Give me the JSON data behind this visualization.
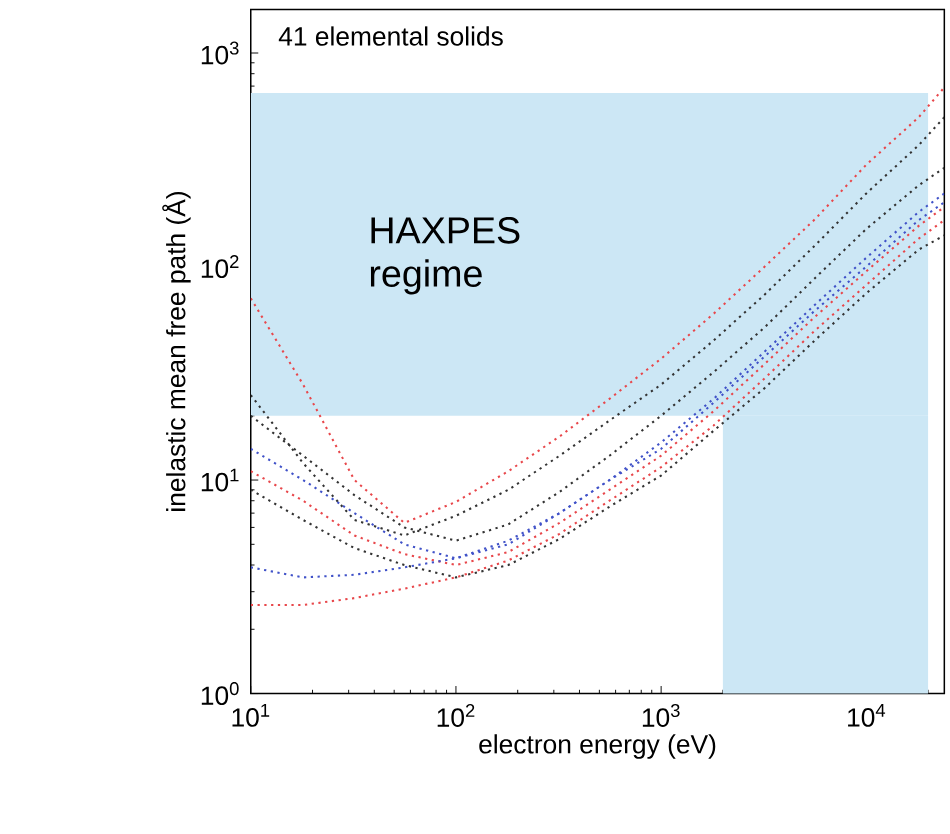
{
  "chart_data": {
    "type": "line",
    "xlabel": "electron energy (eV)",
    "ylabel": "inelastic mean free path  (Å)",
    "log": "xy",
    "xlim": [
      10,
      24000
    ],
    "ylim": [
      1,
      1600
    ],
    "xticks": [
      {
        "value": 10,
        "label": "10$^{1}$"
      },
      {
        "value": 100,
        "label": "10$^{2}$"
      },
      {
        "value": 1000,
        "label": "10$^{3}$"
      },
      {
        "value": 10000,
        "label": "10$^{4}$"
      }
    ],
    "yticks": [
      {
        "value": 1,
        "label": "10$^{0}$"
      },
      {
        "value": 10,
        "label": "10$^{1}$"
      },
      {
        "value": 100,
        "label": "10$^{2}$"
      },
      {
        "value": 1000,
        "label": "10$^{3}$"
      }
    ],
    "line_style": "dotted",
    "x": [
      10,
      18,
      32,
      56,
      100,
      180,
      320,
      560,
      1000,
      1800,
      3200,
      5600,
      10000,
      18000,
      24000
    ],
    "annotations": [
      "41 elemental solids",
      "HAXPES regime"
    ],
    "bands": [
      {
        "axis": "y",
        "from": 20,
        "to": 650,
        "color": "#cce7f5"
      },
      {
        "axis": "x",
        "from": 2000,
        "to": 20000,
        "color": "#cce7f5"
      }
    ],
    "series": [
      {
        "color": "#e8474b",
        "values": [
          71,
          28,
          10,
          6.3,
          7.9,
          11,
          16,
          24,
          37,
          60,
          100,
          166,
          300,
          500,
          690
        ]
      },
      {
        "color": "#333333",
        "values": [
          25,
          12,
          6.5,
          5.5,
          6.8,
          9,
          13,
          19,
          28,
          45,
          74,
          125,
          220,
          370,
          500
        ]
      },
      {
        "color": "#333333",
        "values": [
          20,
          13,
          8.5,
          6.0,
          5.2,
          6.2,
          8.8,
          13,
          20,
          32,
          52,
          88,
          150,
          240,
          290
        ]
      },
      {
        "color": "#4052c8",
        "values": [
          14,
          10,
          7,
          5,
          4.3,
          5,
          7,
          10,
          15,
          24,
          40,
          66,
          110,
          180,
          220
        ]
      },
      {
        "color": "#e8474b",
        "values": [
          11,
          8,
          5.5,
          4.5,
          4,
          4.6,
          6.3,
          9,
          13,
          21,
          35,
          58,
          95,
          155,
          190
        ]
      },
      {
        "color": "#333333",
        "values": [
          9,
          6.5,
          4.8,
          4,
          3.5,
          4,
          5.3,
          7.5,
          10.5,
          17,
          27,
          45,
          75,
          120,
          140
        ]
      },
      {
        "color": "#4052c8",
        "values": [
          3.9,
          3.5,
          3.6,
          3.9,
          4.3,
          5.2,
          7,
          10,
          14,
          23,
          38,
          62,
          100,
          165,
          200
        ]
      },
      {
        "color": "#e8474b",
        "values": [
          2.6,
          2.6,
          2.8,
          3.1,
          3.5,
          4.2,
          5.6,
          8,
          11.5,
          18,
          30,
          50,
          82,
          135,
          165
        ]
      }
    ]
  }
}
